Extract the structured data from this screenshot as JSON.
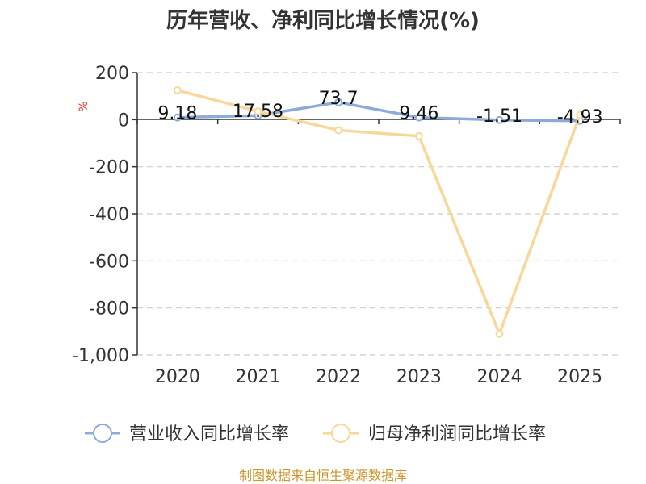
{
  "chart_data": {
    "type": "line",
    "title": "历年营收、净利同比增长情况(%)",
    "ylabel": "%",
    "categories": [
      "2020",
      "2021",
      "2022",
      "2023",
      "2024",
      "2025"
    ],
    "ylim": [
      -1000,
      200
    ],
    "yticks": [
      200,
      0,
      -200,
      -400,
      -600,
      -800,
      -1000
    ],
    "ytick_labels": [
      "200",
      "0",
      "-200",
      "-400",
      "-600",
      "-800",
      "-1,000"
    ],
    "grid": true,
    "legend_position": "bottom",
    "series": [
      {
        "name": "营业收入同比增长率",
        "color": "#8eaad8",
        "values": [
          9.18,
          17.58,
          73.7,
          9.46,
          -1.51,
          -4.93
        ],
        "labels": [
          "9.18",
          "17.58",
          "73.7",
          "9.46",
          "-1.51",
          "-4.93"
        ]
      },
      {
        "name": "归母净利润同比增长率",
        "color": "#f8d79b",
        "values": [
          125,
          35,
          -45,
          -70,
          -910,
          20
        ]
      }
    ]
  },
  "source": "制图数据来自恒生聚源数据库"
}
